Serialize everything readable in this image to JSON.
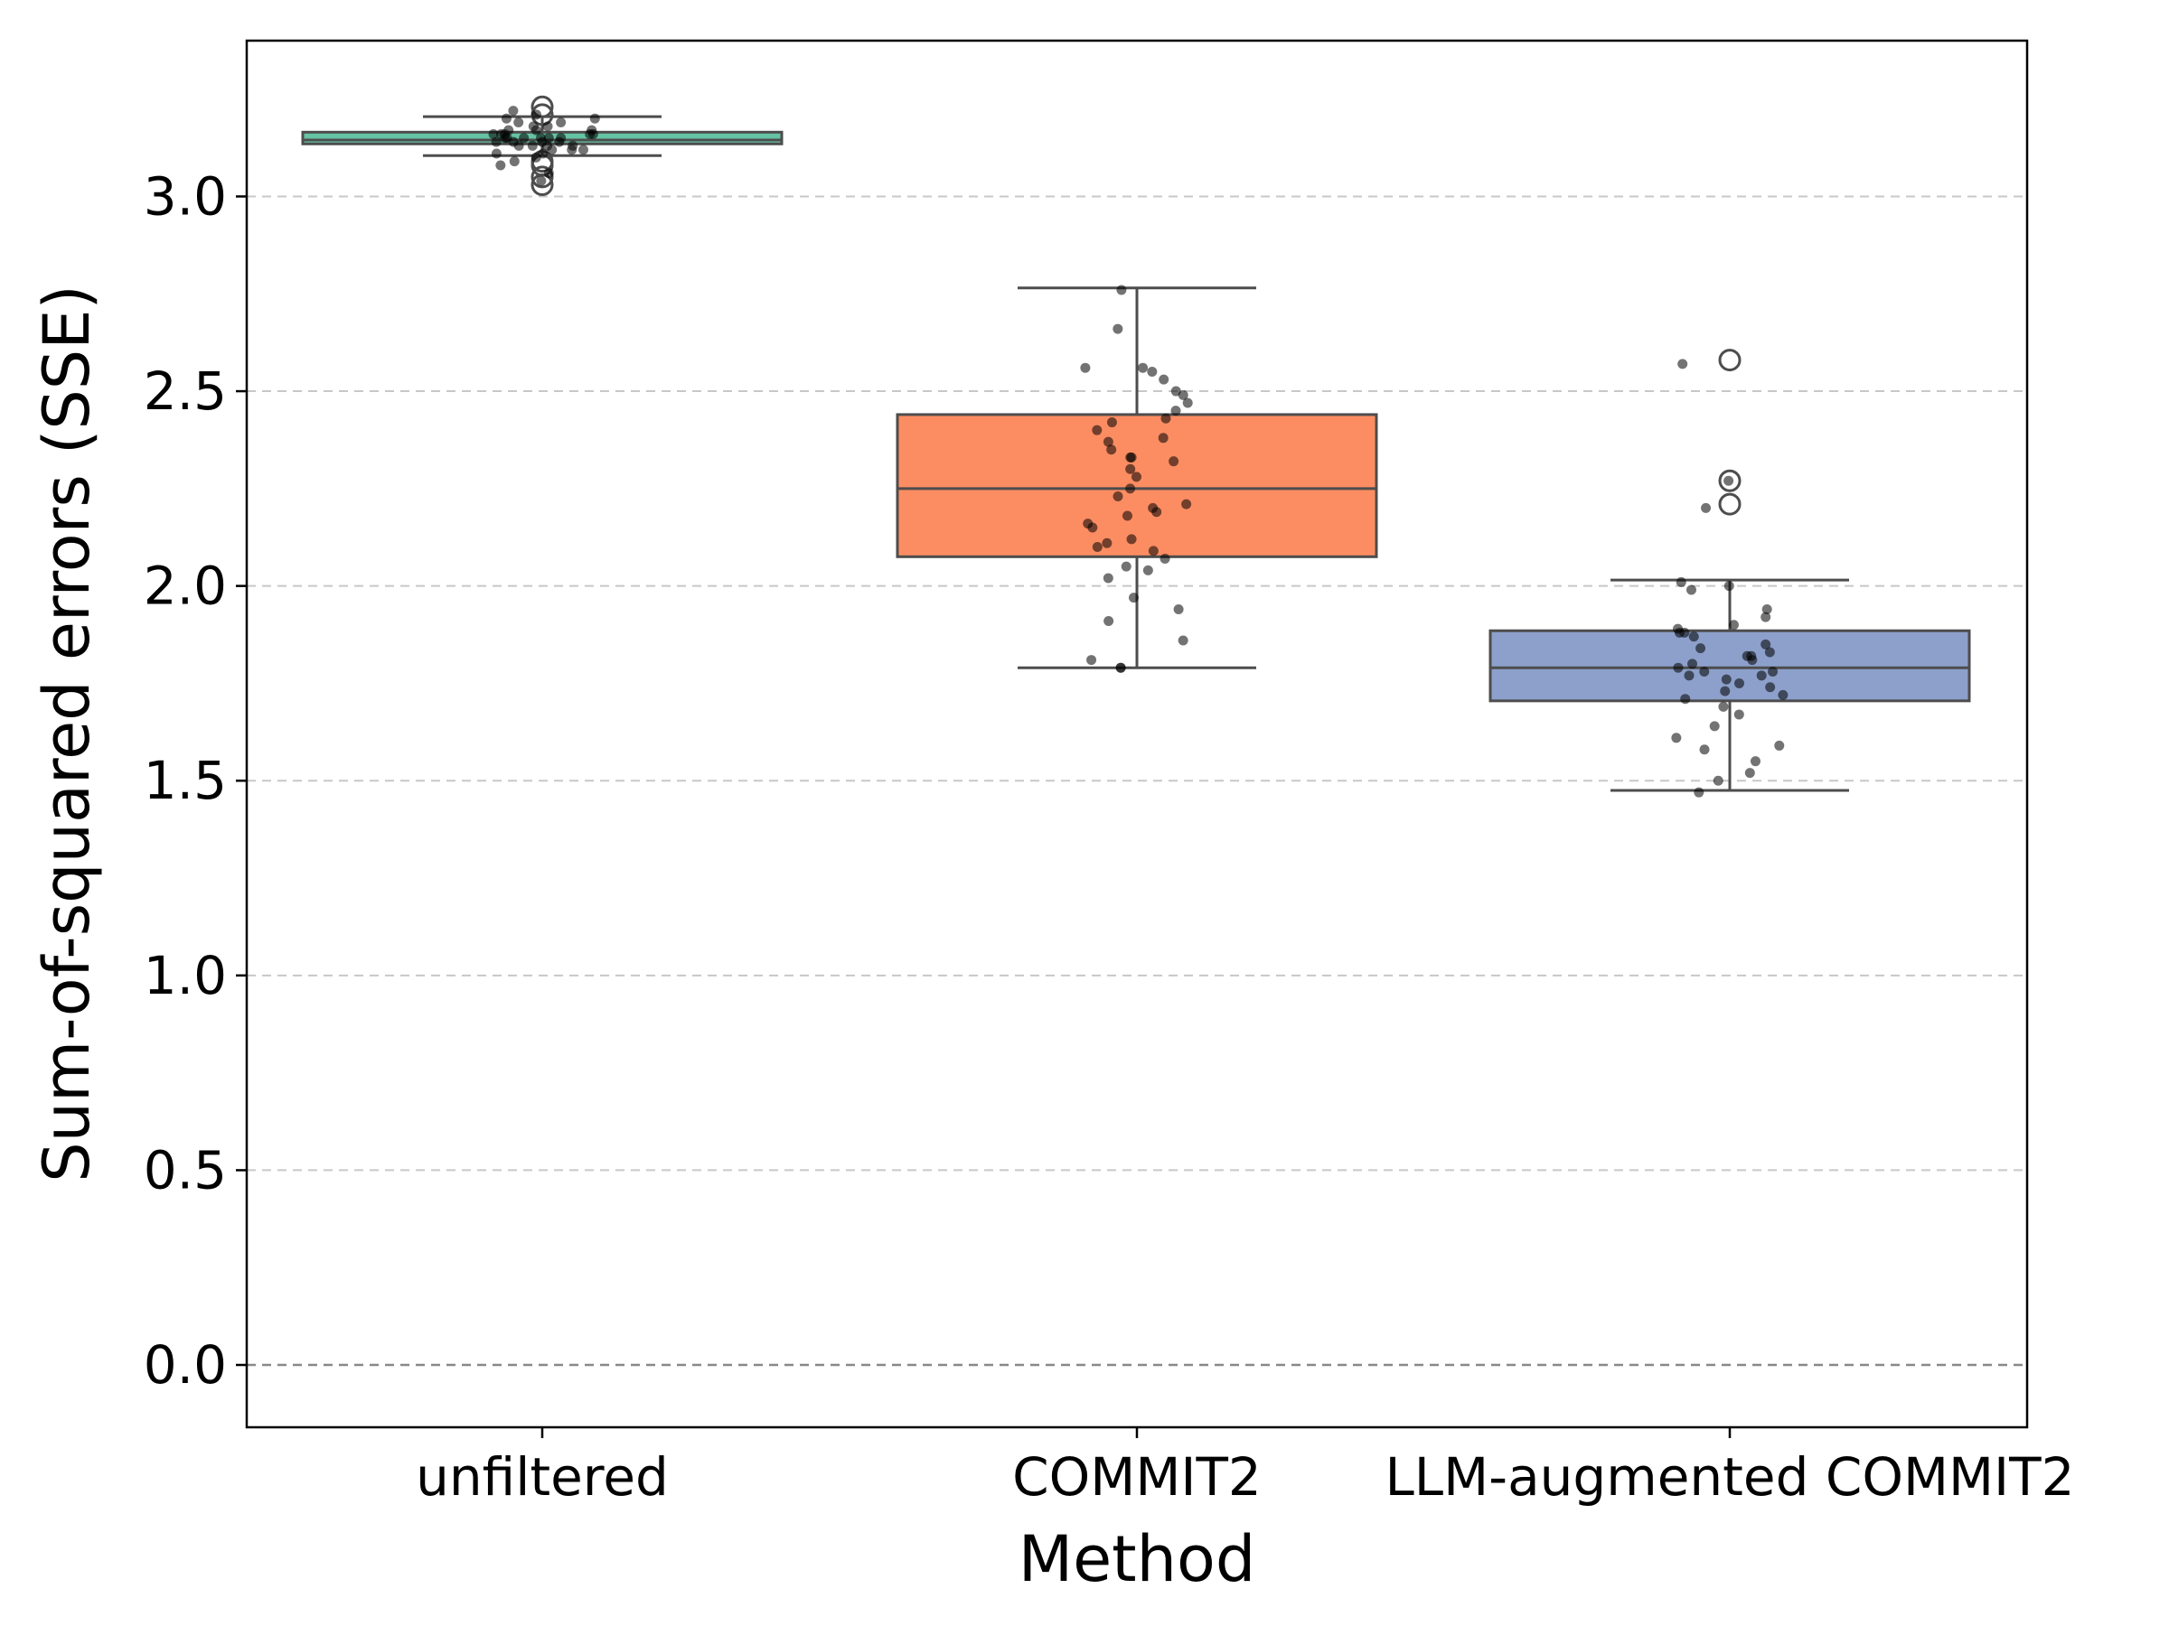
{
  "chart_data": {
    "type": "box",
    "xlabel": "Method",
    "ylabel": "Sum-of-squared errors (SSE)",
    "ylim": [
      -0.16,
      3.4
    ],
    "yticks": [
      0.0,
      0.5,
      1.0,
      1.5,
      2.0,
      2.5,
      3.0
    ],
    "ytick_labels": [
      "0.0",
      "0.5",
      "1.0",
      "1.5",
      "2.0",
      "2.5",
      "3.0"
    ],
    "grid": "horizontal dashed",
    "reference_line": 0.0,
    "categories": [
      "unfiltered",
      "COMMIT2",
      "LLM-augmented COMMIT2"
    ],
    "colors": [
      "#66c2a5",
      "#fc8d62",
      "#8da0cb"
    ],
    "boxes": [
      {
        "category": "unfiltered",
        "whisker_low": 3.105,
        "q1": 3.135,
        "median": 3.145,
        "q3": 3.165,
        "whisker_high": 3.205,
        "outliers": [
          3.03,
          3.05,
          3.08,
          3.09,
          3.21,
          3.23
        ],
        "points": [
          3.04,
          3.06,
          3.08,
          3.09,
          3.1,
          3.11,
          3.11,
          3.12,
          3.12,
          3.13,
          3.13,
          3.13,
          3.14,
          3.14,
          3.14,
          3.14,
          3.15,
          3.15,
          3.15,
          3.15,
          3.15,
          3.16,
          3.16,
          3.16,
          3.16,
          3.17,
          3.17,
          3.17,
          3.18,
          3.18,
          3.19,
          3.19,
          3.2,
          3.2,
          3.21,
          3.22,
          3.13,
          3.15,
          3.16,
          3.12
        ]
      },
      {
        "category": "COMMIT2",
        "whisker_low": 1.79,
        "q1": 2.075,
        "median": 2.25,
        "q3": 2.44,
        "whisker_high": 2.765,
        "outliers": [],
        "points": [
          1.79,
          1.79,
          1.81,
          1.86,
          1.91,
          1.94,
          1.97,
          2.02,
          2.04,
          2.05,
          2.07,
          2.09,
          2.1,
          2.11,
          2.12,
          2.15,
          2.16,
          2.18,
          2.19,
          2.2,
          2.21,
          2.23,
          2.25,
          2.28,
          2.3,
          2.32,
          2.33,
          2.33,
          2.35,
          2.37,
          2.38,
          2.4,
          2.42,
          2.43,
          2.45,
          2.47,
          2.49,
          2.5,
          2.53,
          2.55,
          2.56,
          2.56,
          2.66,
          2.76
        ]
      },
      {
        "category": "LLM-augmented COMMIT2",
        "whisker_low": 1.475,
        "q1": 1.705,
        "median": 1.79,
        "q3": 1.885,
        "whisker_high": 2.015,
        "outliers": [
          2.21,
          2.27,
          2.58
        ],
        "points": [
          1.47,
          1.5,
          1.52,
          1.55,
          1.58,
          1.59,
          1.61,
          1.64,
          1.67,
          1.69,
          1.71,
          1.72,
          1.73,
          1.74,
          1.75,
          1.76,
          1.77,
          1.77,
          1.78,
          1.78,
          1.79,
          1.8,
          1.81,
          1.82,
          1.82,
          1.83,
          1.84,
          1.85,
          1.87,
          1.88,
          1.88,
          1.89,
          1.9,
          1.92,
          1.94,
          1.99,
          2.0,
          2.01,
          2.2,
          2.27,
          2.57
        ]
      }
    ]
  }
}
